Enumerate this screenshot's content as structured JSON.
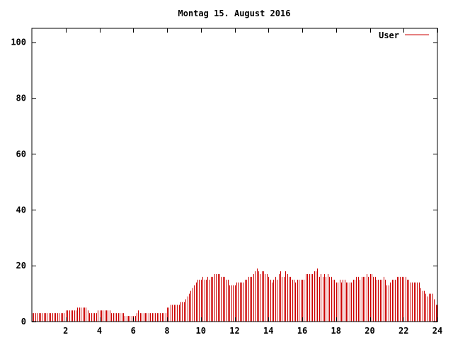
{
  "chart_data": {
    "type": "bar",
    "title": "Montag 15. August 2016",
    "xlabel": "",
    "ylabel": "",
    "xlim": [
      0,
      24
    ],
    "ylim": [
      0,
      105
    ],
    "x_ticks": [
      2,
      4,
      6,
      8,
      10,
      12,
      14,
      16,
      18,
      20,
      22,
      24
    ],
    "y_ticks": [
      0,
      20,
      40,
      60,
      80,
      100
    ],
    "legend_position": "top-right",
    "series": [
      {
        "name": "User",
        "color": "#cc0000",
        "points": [
          [
            0.0,
            3
          ],
          [
            0.1,
            3
          ],
          [
            0.2,
            3
          ],
          [
            0.3,
            3
          ],
          [
            0.4,
            3
          ],
          [
            0.5,
            3
          ],
          [
            0.6,
            3
          ],
          [
            0.7,
            3
          ],
          [
            0.8,
            3
          ],
          [
            0.9,
            3
          ],
          [
            1.0,
            3
          ],
          [
            1.1,
            3
          ],
          [
            1.2,
            3
          ],
          [
            1.3,
            3
          ],
          [
            1.4,
            3
          ],
          [
            1.5,
            3
          ],
          [
            1.6,
            3
          ],
          [
            1.7,
            3
          ],
          [
            1.8,
            3
          ],
          [
            1.9,
            3
          ],
          [
            2.0,
            4
          ],
          [
            2.1,
            4
          ],
          [
            2.2,
            4
          ],
          [
            2.3,
            4
          ],
          [
            2.4,
            4
          ],
          [
            2.5,
            4
          ],
          [
            2.6,
            4
          ],
          [
            2.7,
            5
          ],
          [
            2.8,
            5
          ],
          [
            2.9,
            5
          ],
          [
            3.0,
            5
          ],
          [
            3.1,
            5
          ],
          [
            3.2,
            5
          ],
          [
            3.3,
            4
          ],
          [
            3.4,
            3
          ],
          [
            3.5,
            3
          ],
          [
            3.6,
            3
          ],
          [
            3.7,
            3
          ],
          [
            3.8,
            3
          ],
          [
            3.9,
            4
          ],
          [
            4.0,
            4
          ],
          [
            4.1,
            4
          ],
          [
            4.2,
            4
          ],
          [
            4.3,
            4
          ],
          [
            4.4,
            4
          ],
          [
            4.5,
            4
          ],
          [
            4.6,
            4
          ],
          [
            4.7,
            3
          ],
          [
            4.8,
            3
          ],
          [
            4.9,
            3
          ],
          [
            5.0,
            3
          ],
          [
            5.1,
            3
          ],
          [
            5.2,
            3
          ],
          [
            5.3,
            3
          ],
          [
            5.4,
            3
          ],
          [
            5.5,
            2
          ],
          [
            5.6,
            2
          ],
          [
            5.7,
            2
          ],
          [
            5.8,
            2
          ],
          [
            5.9,
            2
          ],
          [
            6.0,
            2
          ],
          [
            6.1,
            2
          ],
          [
            6.2,
            3
          ],
          [
            6.3,
            4
          ],
          [
            6.4,
            3
          ],
          [
            6.5,
            3
          ],
          [
            6.6,
            3
          ],
          [
            6.7,
            3
          ],
          [
            6.8,
            3
          ],
          [
            6.9,
            3
          ],
          [
            7.0,
            3
          ],
          [
            7.1,
            3
          ],
          [
            7.2,
            3
          ],
          [
            7.3,
            3
          ],
          [
            7.4,
            3
          ],
          [
            7.5,
            3
          ],
          [
            7.6,
            3
          ],
          [
            7.7,
            3
          ],
          [
            7.8,
            3
          ],
          [
            7.9,
            3
          ],
          [
            8.0,
            5
          ],
          [
            8.1,
            5
          ],
          [
            8.2,
            6
          ],
          [
            8.3,
            6
          ],
          [
            8.4,
            6
          ],
          [
            8.5,
            6
          ],
          [
            8.6,
            6
          ],
          [
            8.7,
            6
          ],
          [
            8.8,
            7
          ],
          [
            8.9,
            7
          ],
          [
            9.0,
            7
          ],
          [
            9.1,
            8
          ],
          [
            9.2,
            9
          ],
          [
            9.3,
            10
          ],
          [
            9.4,
            11
          ],
          [
            9.5,
            12
          ],
          [
            9.6,
            13
          ],
          [
            9.7,
            14
          ],
          [
            9.8,
            15
          ],
          [
            9.9,
            15
          ],
          [
            10.0,
            15
          ],
          [
            10.1,
            16
          ],
          [
            10.2,
            15
          ],
          [
            10.3,
            15
          ],
          [
            10.4,
            16
          ],
          [
            10.5,
            15
          ],
          [
            10.6,
            16
          ],
          [
            10.7,
            16
          ],
          [
            10.8,
            17
          ],
          [
            10.9,
            17
          ],
          [
            11.0,
            17
          ],
          [
            11.1,
            17
          ],
          [
            11.2,
            16
          ],
          [
            11.3,
            16
          ],
          [
            11.4,
            16
          ],
          [
            11.5,
            15
          ],
          [
            11.6,
            15
          ],
          [
            11.7,
            13
          ],
          [
            11.8,
            13
          ],
          [
            11.9,
            13
          ],
          [
            12.0,
            13
          ],
          [
            12.1,
            14
          ],
          [
            12.2,
            14
          ],
          [
            12.3,
            14
          ],
          [
            12.4,
            14
          ],
          [
            12.5,
            14
          ],
          [
            12.6,
            15
          ],
          [
            12.7,
            15
          ],
          [
            12.8,
            16
          ],
          [
            12.9,
            16
          ],
          [
            13.0,
            16
          ],
          [
            13.1,
            17
          ],
          [
            13.2,
            18
          ],
          [
            13.3,
            19
          ],
          [
            13.4,
            18
          ],
          [
            13.5,
            17
          ],
          [
            13.6,
            18
          ],
          [
            13.7,
            18
          ],
          [
            13.8,
            17
          ],
          [
            13.9,
            17
          ],
          [
            14.0,
            16
          ],
          [
            14.1,
            15
          ],
          [
            14.2,
            14
          ],
          [
            14.3,
            15
          ],
          [
            14.4,
            16
          ],
          [
            14.5,
            15
          ],
          [
            14.6,
            17
          ],
          [
            14.7,
            18
          ],
          [
            14.8,
            16
          ],
          [
            14.9,
            16
          ],
          [
            15.0,
            18
          ],
          [
            15.1,
            17
          ],
          [
            15.2,
            16
          ],
          [
            15.3,
            16
          ],
          [
            15.4,
            15
          ],
          [
            15.5,
            15
          ],
          [
            15.6,
            14
          ],
          [
            15.7,
            15
          ],
          [
            15.8,
            15
          ],
          [
            15.9,
            15
          ],
          [
            16.0,
            15
          ],
          [
            16.1,
            15
          ],
          [
            16.2,
            17
          ],
          [
            16.3,
            17
          ],
          [
            16.4,
            17
          ],
          [
            16.5,
            17
          ],
          [
            16.6,
            17
          ],
          [
            16.7,
            18
          ],
          [
            16.8,
            18
          ],
          [
            16.9,
            19
          ],
          [
            17.0,
            16
          ],
          [
            17.1,
            17
          ],
          [
            17.2,
            16
          ],
          [
            17.3,
            17
          ],
          [
            17.4,
            16
          ],
          [
            17.5,
            17
          ],
          [
            17.6,
            16
          ],
          [
            17.7,
            16
          ],
          [
            17.8,
            15
          ],
          [
            17.9,
            15
          ],
          [
            18.0,
            14
          ],
          [
            18.1,
            14
          ],
          [
            18.2,
            15
          ],
          [
            18.3,
            14
          ],
          [
            18.4,
            15
          ],
          [
            18.5,
            15
          ],
          [
            18.6,
            14
          ],
          [
            18.7,
            14
          ],
          [
            18.8,
            14
          ],
          [
            18.9,
            14
          ],
          [
            19.0,
            15
          ],
          [
            19.1,
            15
          ],
          [
            19.2,
            16
          ],
          [
            19.3,
            16
          ],
          [
            19.4,
            15
          ],
          [
            19.5,
            16
          ],
          [
            19.6,
            16
          ],
          [
            19.7,
            16
          ],
          [
            19.8,
            17
          ],
          [
            19.9,
            16
          ],
          [
            20.0,
            17
          ],
          [
            20.1,
            17
          ],
          [
            20.2,
            16
          ],
          [
            20.3,
            16
          ],
          [
            20.4,
            15
          ],
          [
            20.5,
            15
          ],
          [
            20.6,
            15
          ],
          [
            20.7,
            15
          ],
          [
            20.8,
            16
          ],
          [
            20.9,
            15
          ],
          [
            21.0,
            13
          ],
          [
            21.1,
            13
          ],
          [
            21.2,
            14
          ],
          [
            21.3,
            15
          ],
          [
            21.4,
            15
          ],
          [
            21.5,
            15
          ],
          [
            21.6,
            16
          ],
          [
            21.7,
            16
          ],
          [
            21.8,
            16
          ],
          [
            21.9,
            16
          ],
          [
            22.0,
            16
          ],
          [
            22.1,
            16
          ],
          [
            22.2,
            15
          ],
          [
            22.3,
            15
          ],
          [
            22.4,
            14
          ],
          [
            22.5,
            14
          ],
          [
            22.6,
            14
          ],
          [
            22.7,
            14
          ],
          [
            22.8,
            14
          ],
          [
            22.9,
            14
          ],
          [
            23.0,
            12
          ],
          [
            23.1,
            11
          ],
          [
            23.2,
            11
          ],
          [
            23.3,
            10
          ],
          [
            23.4,
            9
          ],
          [
            23.5,
            10
          ],
          [
            23.6,
            10
          ],
          [
            23.7,
            10
          ],
          [
            23.8,
            8
          ],
          [
            23.9,
            6
          ],
          [
            24.0,
            6
          ]
        ]
      }
    ]
  }
}
